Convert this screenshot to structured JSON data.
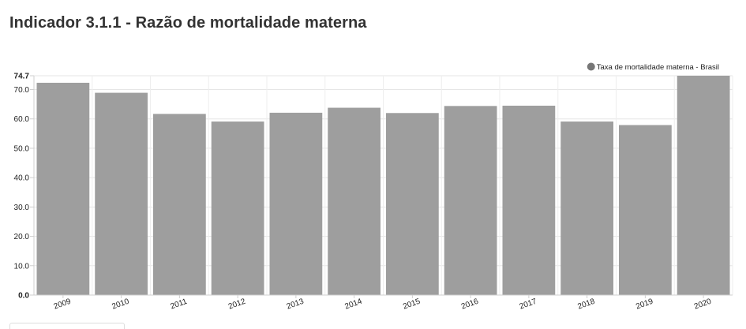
{
  "page": {
    "title": "Indicador 3.1.1 - Razão de mortalidade materna"
  },
  "chart_data": {
    "type": "bar",
    "categories": [
      "2009",
      "2010",
      "2011",
      "2012",
      "2013",
      "2014",
      "2015",
      "2016",
      "2017",
      "2018",
      "2019",
      "2020"
    ],
    "series": [
      {
        "name": "Taxa de mortalidade materna - Brasil",
        "values": [
          72.3,
          68.9,
          61.7,
          59.1,
          62.1,
          63.8,
          62.0,
          64.4,
          64.5,
          59.1,
          57.9,
          74.7
        ],
        "color": "#9e9e9e"
      }
    ],
    "ylim": [
      0,
      74.7
    ],
    "yticks": [
      {
        "value": 0,
        "label": "0.0"
      },
      {
        "value": 10,
        "label": "10.0"
      },
      {
        "value": 20,
        "label": "20.0"
      },
      {
        "value": 30,
        "label": "30.0"
      },
      {
        "value": 40,
        "label": "40.0"
      },
      {
        "value": 50,
        "label": "50.0"
      },
      {
        "value": 60,
        "label": "60.0"
      },
      {
        "value": 70,
        "label": "70.0"
      },
      {
        "value": 74.7,
        "label": "74.7"
      }
    ],
    "grid": true,
    "legend_position": "top-right",
    "legend_marker_color": "#777777",
    "xlabel": "",
    "ylabel": ""
  }
}
